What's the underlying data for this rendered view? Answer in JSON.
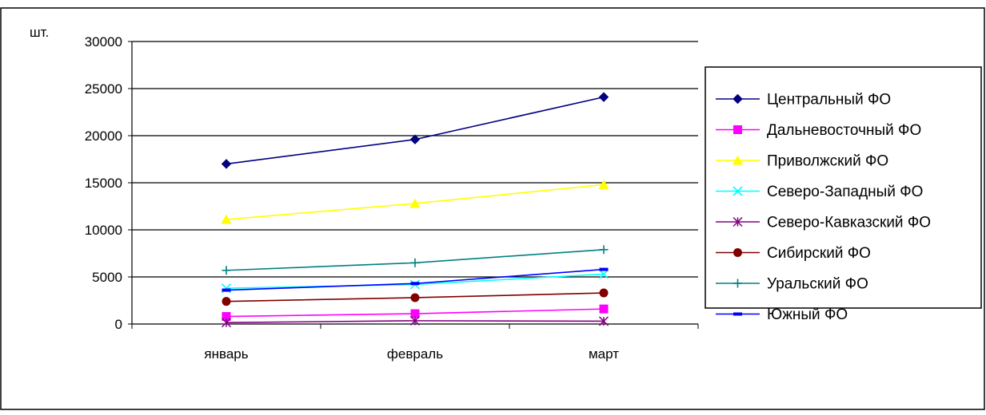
{
  "chart_data": {
    "type": "line",
    "unit_label": "шт.",
    "categories": [
      "январь",
      "февраль",
      "март"
    ],
    "ylim": [
      0,
      30000
    ],
    "yticks": [
      0,
      5000,
      10000,
      15000,
      20000,
      25000,
      30000
    ],
    "grid": true,
    "legend_position": "right",
    "series": [
      {
        "name": "Центральный ФО",
        "values": [
          17000,
          19600,
          24100
        ],
        "color": "#000080",
        "marker": "diamond"
      },
      {
        "name": "Дальневосточный ФО",
        "values": [
          800,
          1100,
          1600
        ],
        "color": "#FF00FF",
        "marker": "square"
      },
      {
        "name": "Приволжский ФО",
        "values": [
          11100,
          12800,
          14800
        ],
        "color": "#FFFF00",
        "marker": "triangle"
      },
      {
        "name": "Северо-Западный ФО",
        "values": [
          3800,
          4200,
          5300
        ],
        "color": "#00FFFF",
        "marker": "x"
      },
      {
        "name": "Северо-Кавказский ФО",
        "values": [
          150,
          350,
          300
        ],
        "color": "#800080",
        "marker": "star"
      },
      {
        "name": "Сибирский ФО",
        "values": [
          2400,
          2800,
          3300
        ],
        "color": "#800000",
        "marker": "circle"
      },
      {
        "name": "Уральский ФО",
        "values": [
          5700,
          6500,
          7900
        ],
        "color": "#008080",
        "marker": "plus"
      },
      {
        "name": "Южный ФО",
        "values": [
          3600,
          4300,
          5800
        ],
        "color": "#0000FF",
        "marker": "dash"
      }
    ]
  }
}
